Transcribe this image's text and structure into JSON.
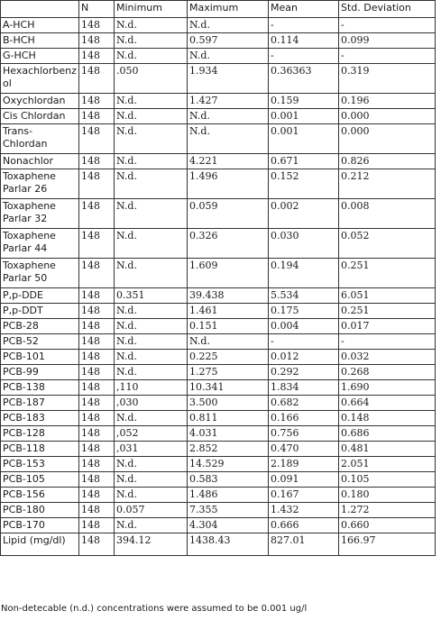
{
  "table": {
    "headers": [
      "",
      "N",
      "Minimum",
      "Maximum",
      "Mean",
      "Std. Deviation"
    ],
    "rows": [
      {
        "name": "A-HCH",
        "n": "148",
        "min": "N.d.",
        "max": "N.d.",
        "mean": "-",
        "sd": "-"
      },
      {
        "name": "B-HCH",
        "n": "148",
        "min": "N.d.",
        "max": "0.597",
        "mean": "0.114",
        "sd": "0.099"
      },
      {
        "name": "G-HCH",
        "n": "148",
        "min": "N.d.",
        "max": "N.d.",
        "mean": "-",
        "sd": "-"
      },
      {
        "name": "Hexachlorbenzol",
        "n": "148",
        "min": ".050",
        "max": "1.934",
        "mean": "0.36363",
        "sd": "0.319"
      },
      {
        "name": "Oxychlordan",
        "n": "148",
        "min": "N.d.",
        "max": "1.427",
        "mean": "0.159",
        "sd": "0.196"
      },
      {
        "name": "Cis Chlordan",
        "n": "148",
        "min": "N.d.",
        "max": "N.d.",
        "mean": "0.001",
        "sd": "0.000"
      },
      {
        "name": "Trans-Chlordan",
        "n": "148",
        "min": "N.d.",
        "max": "N.d.",
        "mean": "0.001",
        "sd": "0.000"
      },
      {
        "name": "Nonachlor",
        "n": "148",
        "min": "N.d.",
        "max": "4.221",
        "mean": "0.671",
        "sd": "0.826"
      },
      {
        "name": "Toxaphene Parlar 26",
        "n": "148",
        "min": "N.d.",
        "max": "1.496",
        "mean": "0.152",
        "sd": "0.212"
      },
      {
        "name": "Toxaphene Parlar 32",
        "n": "148",
        "min": "N.d.",
        "max": "0.059",
        "mean": "0.002",
        "sd": "0.008"
      },
      {
        "name": "Toxaphene Parlar 44",
        "n": "148",
        "min": "N.d.",
        "max": "0.326",
        "mean": "0.030",
        "sd": "0.052"
      },
      {
        "name": "Toxaphene Parlar 50",
        "n": "148",
        "min": "N.d.",
        "max": "1.609",
        "mean": "0.194",
        "sd": "0.251"
      },
      {
        "name": "P,p-DDE",
        "n": "148",
        "min": "0.351",
        "max": "39.438",
        "mean": "5.534",
        "sd": "6.051"
      },
      {
        "name": "P,p-DDT",
        "n": "148",
        "min": "N.d.",
        "max": "1.461",
        "mean": "0.175",
        "sd": "0.251"
      },
      {
        "name": "PCB-28",
        "n": "148",
        "min": "N.d.",
        "max": "0.151",
        "mean": "0.004",
        "sd": "0.017"
      },
      {
        "name": "PCB-52",
        "n": "148",
        "min": "N.d.",
        "max": "N.d.",
        "mean": "-",
        "sd": "-"
      },
      {
        "name": "PCB-101",
        "n": "148",
        "min": "N.d.",
        "max": "0.225",
        "mean": "0.012",
        "sd": "0.032"
      },
      {
        "name": "PCB-99",
        "n": "148",
        "min": "N.d.",
        "max": "1.275",
        "mean": "0.292",
        "sd": "0.268"
      },
      {
        "name": "PCB-138",
        "n": "148",
        "min": ",110",
        "max": "10.341",
        "mean": "1.834",
        "sd": "1.690"
      },
      {
        "name": "PCB-187",
        "n": "148",
        "min": ",030",
        "max": "3.500",
        "mean": "0.682",
        "sd": "0.664"
      },
      {
        "name": "PCB-183",
        "n": "148",
        "min": "N.d.",
        "max": "0.811",
        "mean": "0.166",
        "sd": "0.148"
      },
      {
        "name": "PCB-128",
        "n": "148",
        "min": ",052",
        "max": "4.031",
        "mean": "0.756",
        "sd": "0.686"
      },
      {
        "name": "PCB-118",
        "n": "148",
        "min": ",031",
        "max": "2.852",
        "mean": "0.470",
        "sd": "0.481"
      },
      {
        "name": "PCB-153",
        "n": "148",
        "min": "N.d.",
        "max": "14.529",
        "mean": "2.189",
        "sd": "2.051"
      },
      {
        "name": "PCB-105",
        "n": "148",
        "min": "N.d.",
        "max": "0.583",
        "mean": "0.091",
        "sd": "0.105"
      },
      {
        "name": "PCB-156",
        "n": "148",
        "min": "N.d.",
        "max": "1.486",
        "mean": "0.167",
        "sd": "0.180"
      },
      {
        "name": "PCB-180",
        "n": "148",
        "min": "0.057",
        "max": "7.355",
        "mean": "1.432",
        "sd": "1.272"
      },
      {
        "name": "PCB-170",
        "n": "148",
        "min": "N.d.",
        "max": "4.304",
        "mean": "0.666",
        "sd": "0.660"
      },
      {
        "name": "Lipid (mg/dl)",
        "n": "148",
        "min": "394.12",
        "max": "1438.43",
        "mean": "827.01",
        "sd": "166.97"
      }
    ]
  },
  "footnote": "Non-detecable (n.d.) concentrations were assumed to be 0.001 ug/l"
}
